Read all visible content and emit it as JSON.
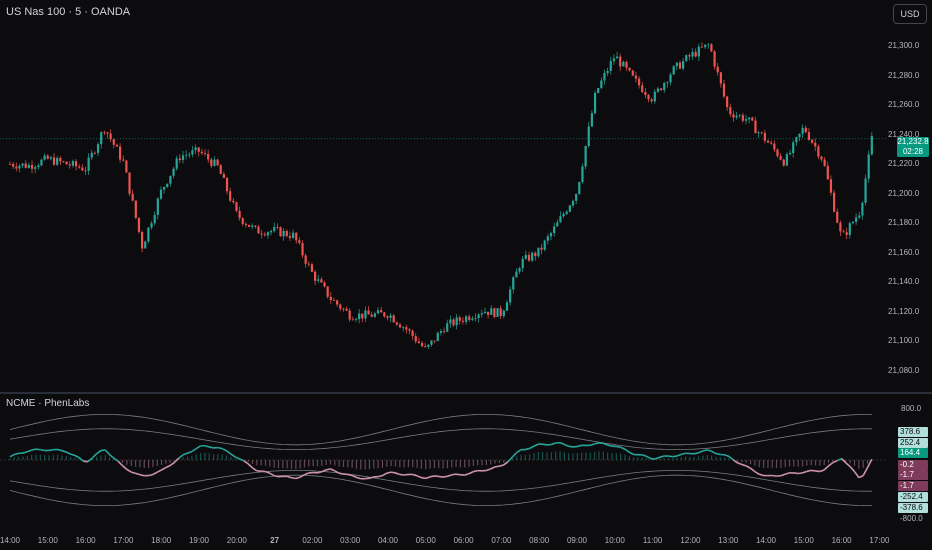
{
  "header": {
    "symbol_title": "US Nas 100 · 5 · OANDA",
    "currency": "USD"
  },
  "indicator": {
    "title": "NCME · PhenLabs"
  },
  "last_price": {
    "value": "21,232.8",
    "countdown": "02:28",
    "color": "#089981"
  },
  "price_axis": [
    "21,300.0",
    "21,280.0",
    "21,260.0",
    "21,240.0",
    "21,220.0",
    "21,200.0",
    "21,180.0",
    "21,160.0",
    "21,140.0",
    "21,120.0",
    "21,100.0",
    "21,080.0"
  ],
  "indicator_axis": {
    "top": "800.0",
    "bottom": "-800.0"
  },
  "indicator_values": [
    {
      "text": "378.6",
      "bg": "#b2dfdb",
      "fg": "#0c0c0e"
    },
    {
      "text": "252.4",
      "bg": "#b2dfdb",
      "fg": "#0c0c0e"
    },
    {
      "text": "164.4",
      "bg": "#089981",
      "fg": "#ffffff"
    },
    {
      "text": "-0.2",
      "bg": "#7e3b5c",
      "fg": "#ffffff"
    },
    {
      "text": "-1.7",
      "bg": "#7e3b5c",
      "fg": "#ffffff"
    },
    {
      "text": "-1.7",
      "bg": "#7e3b5c",
      "fg": "#ffffff"
    },
    {
      "text": "-252.4",
      "bg": "#b2dfdb",
      "fg": "#0c0c0e"
    },
    {
      "text": "-378.6",
      "bg": "#b2dfdb",
      "fg": "#0c0c0e"
    }
  ],
  "time_axis": [
    "14:00",
    "15:00",
    "16:00",
    "17:00",
    "18:00",
    "19:00",
    "20:00",
    "27",
    "02:00",
    "03:00",
    "04:00",
    "05:00",
    "06:00",
    "07:00",
    "08:00",
    "09:00",
    "10:00",
    "11:00",
    "12:00",
    "13:00",
    "14:00",
    "15:00",
    "16:00",
    "17:00"
  ],
  "colors": {
    "up": "#26a69a",
    "down": "#ef5350",
    "osc_up": "#26a69a",
    "osc_down": "#ce93a8",
    "band": "#787b86"
  },
  "chart_data": {
    "type": "candlestick",
    "title": "US Nas 100 · 5 · OANDA",
    "ylim": [
      21075,
      21320
    ],
    "grid": false,
    "close_path": [
      [
        0,
        21217
      ],
      [
        0.5,
        21216
      ],
      [
        1,
        21220
      ],
      [
        1.5,
        21217
      ],
      [
        2,
        21214
      ],
      [
        2.5,
        21240
      ],
      [
        3,
        21218
      ],
      [
        3.5,
        21165
      ],
      [
        4,
        21200
      ],
      [
        4.5,
        21222
      ],
      [
        5,
        21225
      ],
      [
        5.5,
        21215
      ],
      [
        6,
        21185
      ],
      [
        6.5,
        21175
      ],
      [
        7,
        21175
      ],
      [
        7.5,
        21172
      ],
      [
        8,
        21148
      ],
      [
        8.5,
        21132
      ],
      [
        9,
        21122
      ],
      [
        9.5,
        21122
      ],
      [
        10,
        21123
      ],
      [
        10.5,
        21113
      ],
      [
        11,
        21100
      ],
      [
        11.5,
        21115
      ],
      [
        12,
        21120
      ],
      [
        12.5,
        21125
      ],
      [
        13,
        21123
      ],
      [
        13.5,
        21155
      ],
      [
        14,
        21162
      ],
      [
        14.5,
        21180
      ],
      [
        15,
        21200
      ],
      [
        15.5,
        21262
      ],
      [
        16,
        21285
      ],
      [
        16.5,
        21270
      ],
      [
        17,
        21258
      ],
      [
        17.5,
        21275
      ],
      [
        18,
        21285
      ],
      [
        18.5,
        21292
      ],
      [
        19,
        21250
      ],
      [
        19.5,
        21245
      ],
      [
        20,
        21232
      ],
      [
        20.5,
        21218
      ],
      [
        21,
        21240
      ],
      [
        21.5,
        21220
      ],
      [
        22,
        21170
      ],
      [
        22.5,
        21188
      ],
      [
        22.8,
        21232.8
      ]
    ],
    "indicator": {
      "name": "NCME · PhenLabs",
      "ylim": [
        -800,
        800
      ],
      "line_path": [
        [
          0,
          40
        ],
        [
          0.5,
          120
        ],
        [
          1,
          130
        ],
        [
          1.5,
          110
        ],
        [
          2,
          -30
        ],
        [
          2.5,
          140
        ],
        [
          3,
          -90
        ],
        [
          3.5,
          -210
        ],
        [
          4,
          -140
        ],
        [
          4.5,
          30
        ],
        [
          5,
          170
        ],
        [
          5.5,
          160
        ],
        [
          6,
          40
        ],
        [
          6.5,
          -120
        ],
        [
          7,
          -190
        ],
        [
          7.5,
          -230
        ],
        [
          8,
          -160
        ],
        [
          8.5,
          -120
        ],
        [
          9,
          -200
        ],
        [
          9.5,
          -240
        ],
        [
          10,
          -160
        ],
        [
          10.5,
          -180
        ],
        [
          11,
          -220
        ],
        [
          11.5,
          -200
        ],
        [
          12,
          -180
        ],
        [
          12.5,
          -130
        ],
        [
          13,
          -80
        ],
        [
          13.5,
          120
        ],
        [
          14,
          190
        ],
        [
          14.5,
          210
        ],
        [
          15,
          160
        ],
        [
          15.5,
          210
        ],
        [
          16,
          180
        ],
        [
          16.5,
          80
        ],
        [
          17,
          20
        ],
        [
          17.5,
          50
        ],
        [
          18,
          80
        ],
        [
          18.5,
          120
        ],
        [
          19,
          40
        ],
        [
          19.5,
          -90
        ],
        [
          20,
          -210
        ],
        [
          20.5,
          -180
        ],
        [
          21,
          -150
        ],
        [
          21.5,
          -130
        ],
        [
          22,
          30
        ],
        [
          22.5,
          -240
        ],
        [
          22.8,
          -1.7
        ]
      ]
    }
  }
}
